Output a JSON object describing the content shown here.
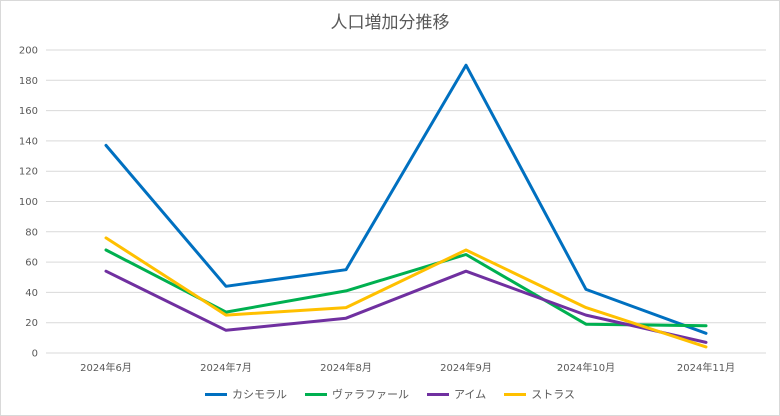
{
  "chart_data": {
    "type": "line",
    "title": "人口増加分推移",
    "categories": [
      "2024年6月",
      "2024年7月",
      "2024年8月",
      "2024年9月",
      "2024年10月",
      "2024年11月"
    ],
    "ylim": [
      0,
      200
    ],
    "yticks": [
      0,
      20,
      40,
      60,
      80,
      100,
      120,
      140,
      160,
      180,
      200
    ],
    "grid": true,
    "legend_position": "bottom",
    "series": [
      {
        "name": "カシモラル",
        "color": "#0070c0",
        "values": [
          137,
          44,
          55,
          190,
          42,
          13
        ]
      },
      {
        "name": "ヴァラファール",
        "color": "#00b050",
        "values": [
          68,
          27,
          41,
          65,
          19,
          18
        ]
      },
      {
        "name": "アイム",
        "color": "#7030a0",
        "values": [
          54,
          15,
          23,
          54,
          25,
          7
        ]
      },
      {
        "name": "ストラス",
        "color": "#ffc000",
        "values": [
          76,
          25,
          30,
          68,
          30,
          4
        ]
      }
    ]
  }
}
